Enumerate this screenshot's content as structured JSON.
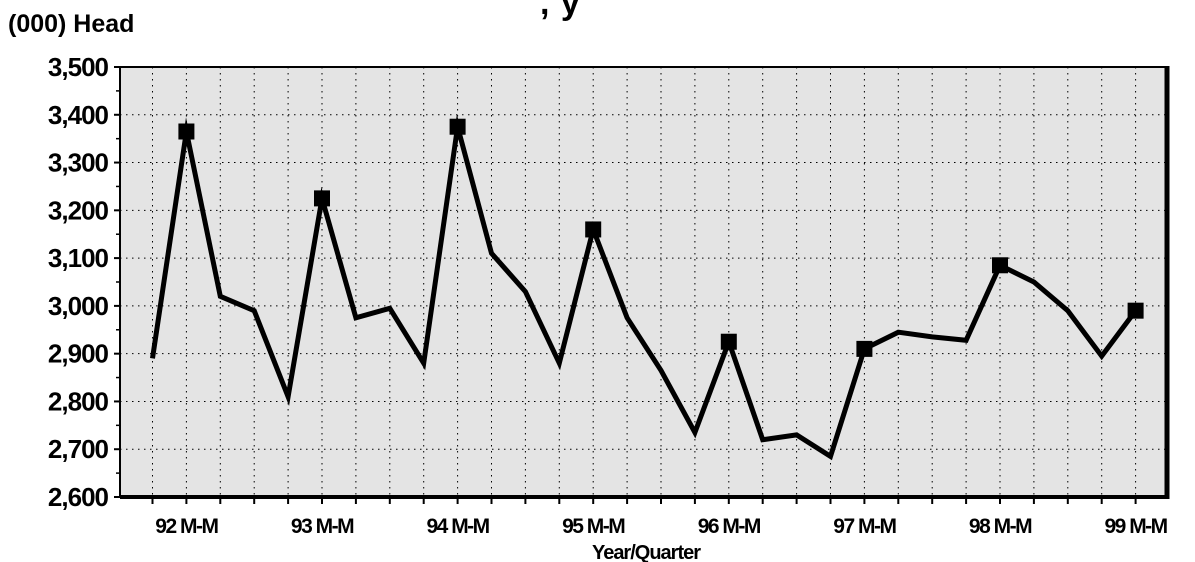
{
  "chart_data": {
    "type": "line",
    "title": ", y",
    "ylabel": "(000) Head",
    "xlabel": "Year/Quarter",
    "ylim": [
      2600,
      3500
    ],
    "yticks": [
      2600,
      2700,
      2800,
      2900,
      3000,
      3100,
      3200,
      3300,
      3400,
      3500
    ],
    "ytick_labels": [
      "2,600",
      "2,700",
      "2,800",
      "2,900",
      "3,000",
      "3,100",
      "3,200",
      "3,300",
      "3,400",
      "3,500"
    ],
    "x_tick_labels": [
      "92 M-M",
      "93 M-M",
      "94 M-M",
      "95 M-M",
      "96 M-M",
      "97 M-M",
      "98 M-M",
      "99 M-M"
    ],
    "grid": true,
    "series": [
      {
        "values": [
          2890,
          3365,
          3020,
          2990,
          2810,
          3225,
          2975,
          2995,
          2880,
          3375,
          3110,
          3030,
          2880,
          3160,
          2975,
          2865,
          2735,
          2925,
          2720,
          2730,
          2685,
          2910,
          2945,
          2935,
          2928,
          3085,
          3050,
          2990,
          2895,
          2990
        ],
        "marker_indices": [
          1,
          5,
          9,
          13,
          17,
          21,
          25,
          29
        ]
      }
    ],
    "colors": {
      "line": "#000000",
      "plot_bg": "#e4e4e4",
      "grid": "#000000"
    }
  }
}
